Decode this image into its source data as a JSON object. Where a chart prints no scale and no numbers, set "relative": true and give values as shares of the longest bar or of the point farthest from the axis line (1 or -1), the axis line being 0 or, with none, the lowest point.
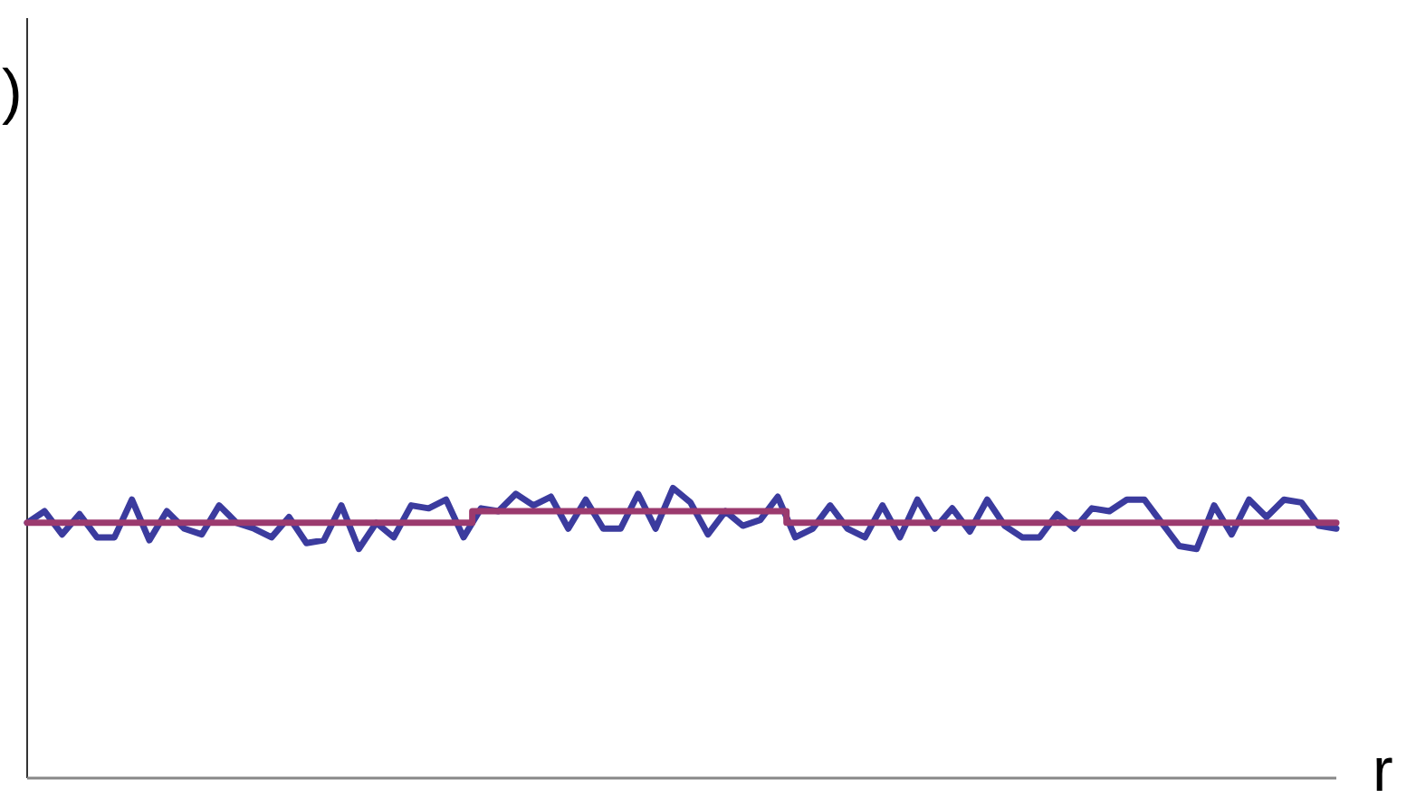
{
  "chart_data": {
    "type": "line",
    "relative": true,
    "xlabel": "r",
    "annotations": [
      ")"
    ],
    "categories": [
      null,
      null,
      null,
      null,
      null,
      null,
      null,
      null,
      null,
      null,
      null,
      null,
      null,
      null,
      null,
      null,
      null,
      null,
      null,
      null,
      null,
      null,
      null,
      null,
      null,
      null,
      null,
      null,
      null,
      null,
      null,
      null,
      null,
      null,
      null,
      null,
      null,
      null,
      null,
      null,
      null,
      null,
      null,
      null,
      null,
      null,
      null,
      null,
      null,
      null,
      null,
      null,
      null,
      null,
      null,
      null,
      null,
      null,
      null,
      null,
      null,
      null,
      null,
      null,
      null,
      null,
      null,
      null,
      null,
      null,
      null,
      null,
      null,
      null,
      null,
      null
    ],
    "series": [
      {
        "color": "#3b3b9e",
        "values": [
          0.88,
          0.92,
          0.84,
          0.91,
          0.83,
          0.83,
          0.96,
          0.82,
          0.92,
          0.86,
          0.84,
          0.94,
          0.88,
          0.86,
          0.83,
          0.9,
          0.81,
          0.82,
          0.94,
          0.79,
          0.88,
          0.83,
          0.94,
          0.93,
          0.96,
          0.83,
          0.93,
          0.92,
          0.98,
          0.94,
          0.97,
          0.86,
          0.96,
          0.86,
          0.86,
          0.98,
          0.86,
          1,
          0.95,
          0.84,
          0.92,
          0.87,
          0.89,
          0.97,
          0.83,
          0.86,
          0.94,
          0.86,
          0.83,
          0.94,
          0.83,
          0.96,
          0.86,
          0.93,
          0.85,
          0.96,
          0.87,
          0.83,
          0.83,
          0.91,
          0.86,
          0.93,
          0.92,
          0.96,
          0.96,
          0.88,
          0.8,
          0.79,
          0.94,
          0.84,
          0.96,
          0.9,
          0.96,
          0.95,
          0.87,
          0.86
        ]
      },
      {
        "type": "step",
        "color": "#9b3a6e",
        "values": [
          0.88,
          0.88,
          0.88,
          0.88,
          0.88,
          0.88,
          0.88,
          0.88,
          0.88,
          0.88,
          0.88,
          0.88,
          0.88,
          0.88,
          0.88,
          0.88,
          0.88,
          0.88,
          0.88,
          0.88,
          0.88,
          0.88,
          0.88,
          0.88,
          0.88,
          0.88,
          0.92,
          0.92,
          0.92,
          0.92,
          0.92,
          0.92,
          0.92,
          0.92,
          0.92,
          0.92,
          0.92,
          0.92,
          0.92,
          0.92,
          0.92,
          0.92,
          0.92,
          0.92,
          0.88,
          0.88,
          0.88,
          0.88,
          0.88,
          0.88,
          0.88,
          0.88,
          0.88,
          0.88,
          0.88,
          0.88,
          0.88,
          0.88,
          0.88,
          0.88,
          0.88,
          0.88,
          0.88,
          0.88,
          0.88,
          0.88,
          0.88,
          0.88,
          0.88,
          0.88,
          0.88,
          0.88,
          0.88,
          0.88,
          0.88,
          0.88
        ]
      }
    ]
  }
}
